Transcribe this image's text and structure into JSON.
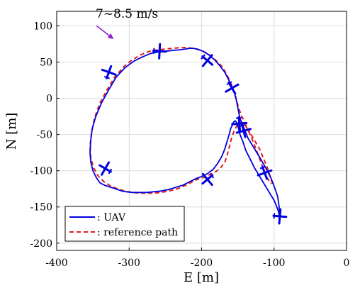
{
  "chart_data": {
    "type": "line",
    "xlabel": "E [m]",
    "ylabel": "N [m]",
    "xlim": [
      -400,
      0
    ],
    "ylim": [
      -210,
      120
    ],
    "xticks": [
      -400,
      -300,
      -200,
      -100,
      0
    ],
    "yticks": [
      100,
      50,
      0,
      -50,
      -100,
      -150,
      -200
    ],
    "grid": true,
    "legend_position": "bottom-left",
    "annotation": {
      "text": "7~8.5 m/s",
      "arrow_from": [
        -345,
        100
      ],
      "arrow_to": [
        -323,
        83
      ],
      "arrow_color": "#8B1FD0"
    },
    "series": [
      {
        "name": ": UAV",
        "color": "#0000E0",
        "style": "solid",
        "x": [
          -92,
          -93,
          -95,
          -99,
          -104,
          -111,
          -119,
          -128,
          -136,
          -142,
          -147,
          -149,
          -151,
          -153,
          -157,
          -162,
          -168,
          -175,
          -182,
          -190,
          -198,
          -206,
          -212,
          -217,
          -222,
          -230,
          -240,
          -250,
          -260,
          -270,
          -282,
          -294,
          -306,
          -318,
          -328,
          -338,
          -346,
          -351,
          -353,
          -354,
          -353,
          -350,
          -345,
          -340,
          -334,
          -328,
          -322,
          -316,
          -310,
          -304,
          -296,
          -286,
          -276,
          -266,
          -256,
          -246,
          -236,
          -226,
          -216,
          -208,
          -200,
          -192,
          -184,
          -178,
          -172,
          -168,
          -165,
          -162,
          -160,
          -158,
          -157,
          -156,
          -155,
          -154,
          -153,
          -152,
          -151,
          -150,
          -149,
          -148,
          -147,
          -145,
          -143,
          -141,
          -139,
          -136,
          -133,
          -130,
          -127,
          -124,
          -121,
          -118,
          -115,
          -112,
          -109,
          -106,
          -103,
          -100,
          -97,
          -94,
          -92
        ],
        "y": [
          -165,
          -150,
          -136,
          -124,
          -111,
          -97,
          -83,
          -68,
          -55,
          -40,
          -28,
          -18,
          -8,
          2,
          13,
          24,
          36,
          45,
          53,
          60,
          65,
          68,
          69,
          69,
          68,
          67,
          66,
          65,
          64,
          62,
          57,
          51,
          42,
          29,
          12,
          -6,
          -25,
          -42,
          -58,
          -75,
          -88,
          -100,
          -110,
          -117,
          -120,
          -122,
          -124,
          -126,
          -128,
          -129,
          -130,
          -130,
          -130,
          -129,
          -128,
          -126,
          -123,
          -120,
          -115,
          -111,
          -108,
          -104,
          -98,
          -90,
          -80,
          -70,
          -60,
          -50,
          -42,
          -38,
          -35,
          -33,
          -32,
          -31,
          -32,
          -33,
          -35,
          -38,
          -42,
          -46,
          -50,
          -55,
          -60,
          -66,
          -72,
          -78,
          -84,
          -90,
          -96,
          -101,
          -106,
          -111,
          -116,
          -121,
          -126,
          -131,
          -136,
          -141,
          -148,
          -156,
          -165
        ]
      },
      {
        "name": ": reference path",
        "color": "#E31A1C",
        "style": "dashed",
        "x": [
          -102,
          -106,
          -110,
          -115,
          -120,
          -127,
          -134,
          -139,
          -144,
          -148,
          -151,
          -154,
          -157,
          -161,
          -166,
          -172,
          -180,
          -188,
          -196,
          -204,
          -212,
          -220,
          -230,
          -240,
          -250,
          -260,
          -272,
          -284,
          -296,
          -308,
          -320,
          -331,
          -341,
          -348,
          -352,
          -354,
          -353,
          -349,
          -343,
          -335,
          -326,
          -316,
          -306,
          -296,
          -286,
          -276,
          -266,
          -256,
          -246,
          -236,
          -226,
          -216,
          -206,
          -196,
          -188,
          -180,
          -173,
          -168,
          -165,
          -163,
          -161,
          -159,
          -157,
          -155,
          -153,
          -151,
          -149,
          -147,
          -145,
          -143,
          -140,
          -137,
          -134,
          -131,
          -128,
          -125,
          -122,
          -119,
          -116,
          -113,
          -110,
          -107,
          -104
        ],
        "y": [
          -118,
          -106,
          -94,
          -82,
          -70,
          -58,
          -46,
          -36,
          -26,
          -16,
          -6,
          4,
          14,
          24,
          34,
          44,
          52,
          59,
          64,
          67,
          69,
          70,
          70,
          69,
          68,
          67,
          65,
          60,
          53,
          43,
          29,
          11,
          -8,
          -28,
          -48,
          -66,
          -82,
          -96,
          -107,
          -115,
          -121,
          -125,
          -128,
          -130,
          -131,
          -131,
          -131,
          -130,
          -128,
          -126,
          -122,
          -117,
          -112,
          -109,
          -105,
          -101,
          -95,
          -88,
          -80,
          -72,
          -64,
          -56,
          -50,
          -45,
          -41,
          -37,
          -34,
          -33,
          -33,
          -34,
          -37,
          -42,
          -48,
          -55,
          -62,
          -70,
          -78,
          -86,
          -94,
          -102,
          -109,
          -114,
          -118
        ]
      }
    ],
    "aircraft_markers": [
      {
        "x": -92,
        "y": -163,
        "heading": 95
      },
      {
        "x": -113,
        "y": -103,
        "heading": 160
      },
      {
        "x": -142,
        "y": -45,
        "heading": 165
      },
      {
        "x": -148,
        "y": -35,
        "heading": 175
      },
      {
        "x": -158,
        "y": 14,
        "heading": 150
      },
      {
        "x": -192,
        "y": 52,
        "heading": 130
      },
      {
        "x": -258,
        "y": 65,
        "heading": 93
      },
      {
        "x": -328,
        "y": 36,
        "heading": 20
      },
      {
        "x": -333,
        "y": -97,
        "heading": 300
      },
      {
        "x": -192,
        "y": -112,
        "heading": 230
      }
    ]
  }
}
